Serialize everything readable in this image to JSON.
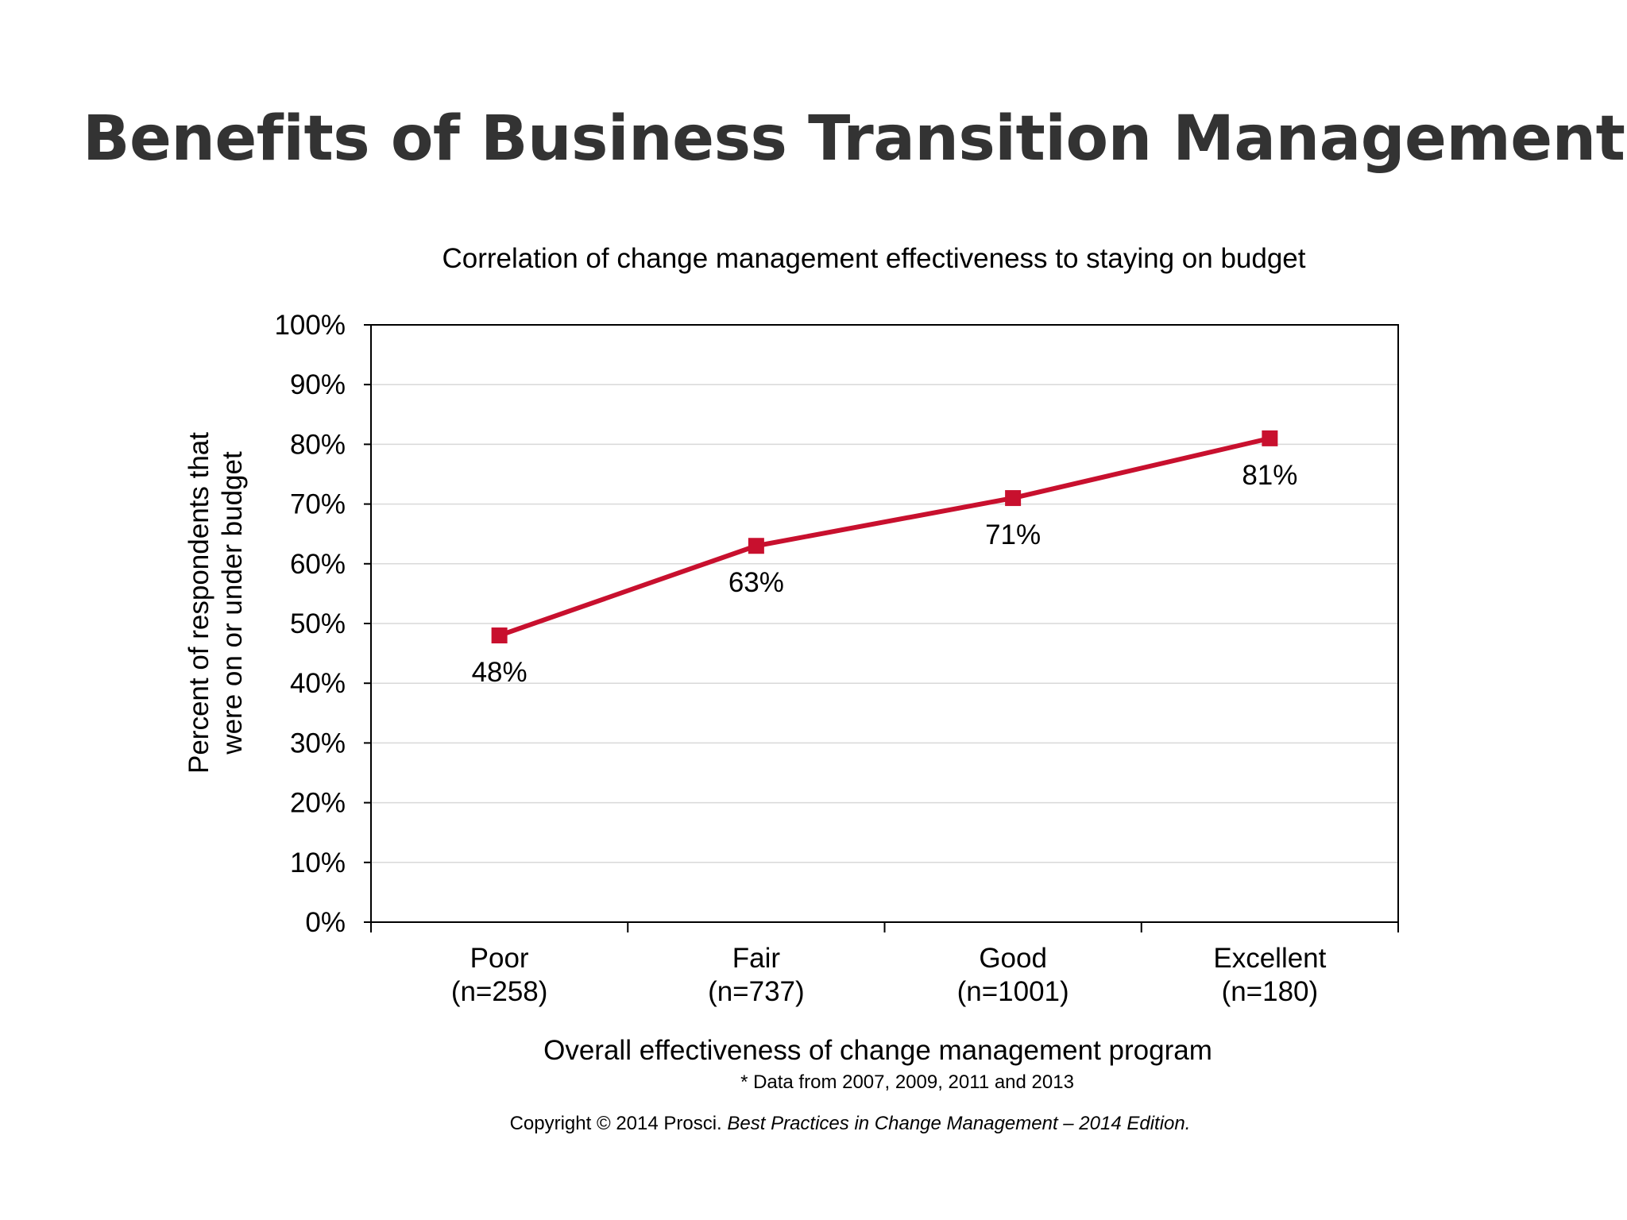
{
  "slide": {
    "title": "Benefits of Business Transition Management"
  },
  "chart_data": {
    "type": "line",
    "title": "Correlation of change management effectiveness to staying on budget",
    "xlabel": "Overall effectiveness of change management program",
    "ylabel_lines": [
      "Percent of respondents that",
      "were on or under budget"
    ],
    "categories": [
      "Poor",
      "Fair",
      "Good",
      "Excellent"
    ],
    "category_sublabels": [
      "(n=258)",
      "(n=737)",
      "(n=1001)",
      "(n=180)"
    ],
    "series": [
      {
        "name": "On or under budget",
        "values": [
          48,
          63,
          71,
          81
        ],
        "point_labels": [
          "48%",
          "63%",
          "71%",
          "81%"
        ],
        "color": "#c8102e"
      }
    ],
    "ylim": [
      0,
      100
    ],
    "yticks": [
      0,
      10,
      20,
      30,
      40,
      50,
      60,
      70,
      80,
      90,
      100
    ],
    "ytick_labels": [
      "0%",
      "10%",
      "20%",
      "30%",
      "40%",
      "50%",
      "60%",
      "70%",
      "80%",
      "90%",
      "100%"
    ],
    "grid": true,
    "grid_color": "#d9d9d9",
    "legend": "none"
  },
  "notes": {
    "data_note": "* Data from 2007, 2009, 2011 and 2013",
    "copyright_prefix": "Copyright © 2014 Prosci.",
    "copyright_source": "Best Practices in Change Management – 2014 Edition."
  }
}
